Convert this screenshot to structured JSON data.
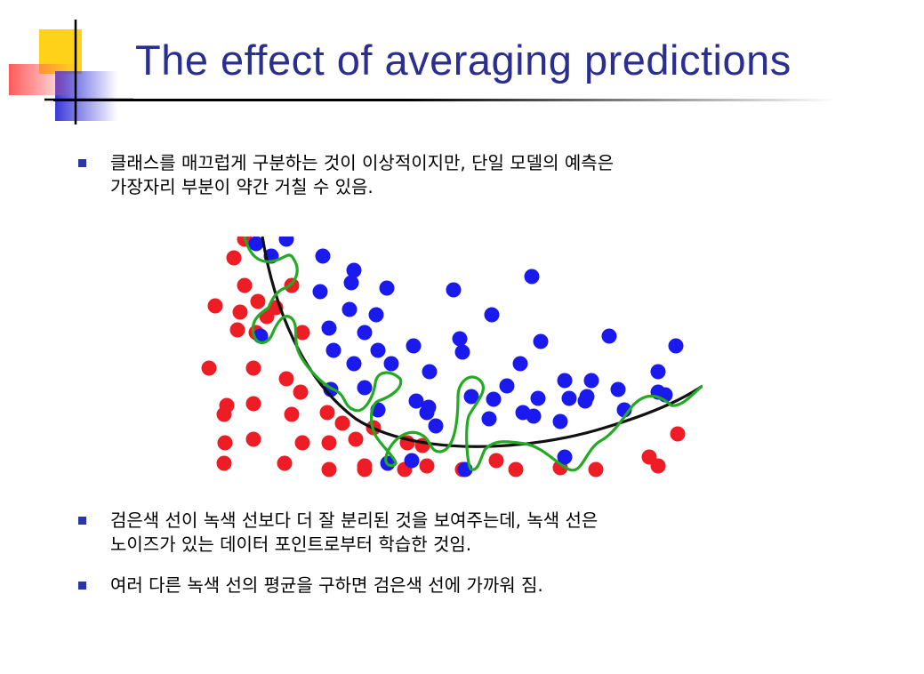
{
  "slide": {
    "title": "The effect of averaging predictions",
    "bullets": [
      {
        "line1": "클래스를 매끄럽게 구분하는 것이 이상적이지만, 단일 모델의 예측은",
        "line2": "가장자리 부분이 약간 거칠 수 있음."
      },
      {
        "line1": "검은색 선이 녹색 선보다 더 잘 분리된 것을 보여주는데, 녹색 선은",
        "line2": "노이즈가 있는 데이터 포인트로부터 학습한 것임."
      },
      {
        "line1": "여러 다른 녹색 선의 평균을 구하면 검은색 선에 가까워 짐."
      }
    ]
  },
  "colors": {
    "title": "#2a2e8f",
    "bullet_mark": "#2a35a8",
    "red_point": "#ee1c24",
    "blue_point": "#1a1aee",
    "smooth_boundary": "#111111",
    "noisy_boundary": "#22aa22"
  }
}
